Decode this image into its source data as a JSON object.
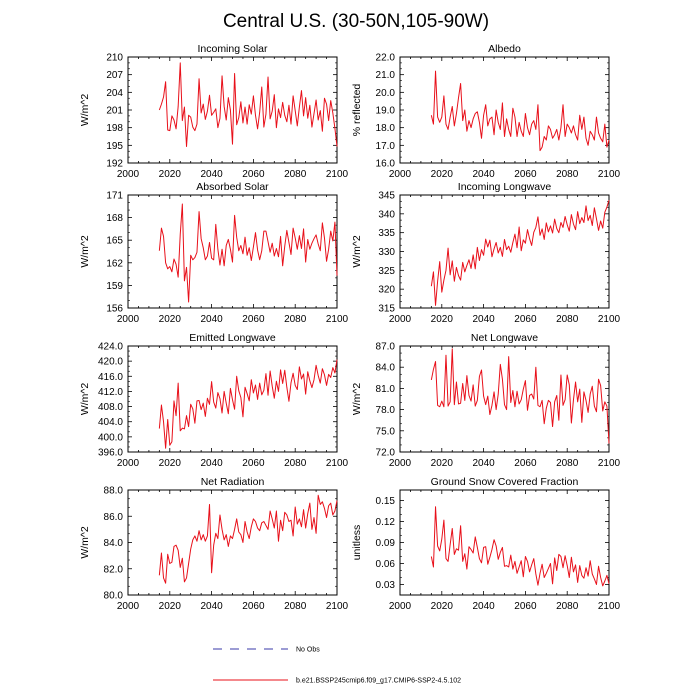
{
  "title": "Central U.S. (30-50N,105-90W)",
  "legend": {
    "obs_label": "No Obs",
    "obs_color": "#3a3aa8",
    "model_label": "b.e21.BSSP245cmip6.f09_g17.CMIP6-SSP2-4.5.102",
    "model_color": "#e8101a"
  },
  "chart_data": [
    {
      "type": "line",
      "title": "Incoming Solar",
      "ylabel": "W/m^2",
      "xlim": [
        2000,
        2100
      ],
      "xticks": [
        2000,
        2020,
        2040,
        2060,
        2080,
        2100
      ],
      "ylim": [
        192,
        210
      ],
      "yticks": [
        "192",
        "195",
        "198",
        "201",
        "204",
        "207",
        "210"
      ],
      "series": [
        {
          "name": "b.e21.BSSP245cmip6.f09_g17.CMIP6-SSP2-4.5.102",
          "x_start": 2015,
          "values": [
            201.0,
            202.0,
            203.2,
            205.8,
            197.6,
            197.5,
            200.0,
            199.3,
            197.8,
            201.6,
            209.0,
            199.2,
            201.5,
            194.8,
            200.1,
            199.8,
            198.1,
            197.5,
            198.6,
            206.3,
            200.5,
            202.0,
            199.4,
            200.8,
            203.5,
            200.1,
            200.6,
            201.2,
            198.0,
            199.6,
            206.8,
            201.6,
            199.3,
            203.1,
            201.0,
            195.2,
            207.2,
            198.5,
            199.7,
            202.4,
            198.8,
            201.5,
            198.6,
            201.9,
            200.3,
            203.4,
            200.1,
            197.8,
            200.6,
            204.9,
            198.1,
            200.3,
            206.6,
            199.5,
            200.8,
            203.6,
            198.0,
            201.2,
            199.7,
            202.3,
            200.1,
            199.0,
            201.8,
            198.6,
            203.4,
            200.9,
            198.3,
            201.5,
            204.3,
            200.0,
            203.1,
            199.6,
            201.8,
            198.1,
            200.4,
            202.7,
            199.3,
            200.9,
            197.4,
            203.0,
            202.0,
            199.2,
            202.6,
            200.5,
            197.9,
            194.8
          ]
        }
      ]
    },
    {
      "type": "line",
      "title": "Albedo",
      "ylabel": "% reflected",
      "xlim": [
        2000,
        2100
      ],
      "xticks": [
        2000,
        2020,
        2040,
        2060,
        2080,
        2100
      ],
      "ylim": [
        16.0,
        22.0
      ],
      "yticks": [
        "16.0",
        "17.0",
        "18.0",
        "19.0",
        "20.0",
        "21.0",
        "22.0"
      ],
      "series": [
        {
          "name": "b.e21.BSSP245cmip6.f09_g17.CMIP6-SSP2-4.5.102",
          "x_start": 2015,
          "values": [
            18.7,
            18.2,
            21.2,
            18.6,
            18.3,
            18.6,
            19.8,
            18.2,
            17.9,
            18.6,
            19.2,
            18.1,
            18.8,
            19.7,
            20.5,
            18.4,
            19.0,
            17.8,
            18.4,
            18.0,
            18.5,
            18.8,
            18.9,
            18.3,
            17.4,
            18.7,
            19.3,
            18.1,
            18.5,
            18.6,
            17.6,
            19.0,
            18.3,
            17.9,
            19.4,
            17.5,
            18.5,
            17.9,
            17.5,
            19.1,
            18.6,
            17.5,
            18.3,
            17.8,
            17.5,
            18.8,
            18.0,
            17.6,
            18.2,
            18.4,
            17.9,
            19.3,
            16.7,
            16.9,
            17.5,
            17.3,
            18.1,
            17.9,
            17.4,
            17.6,
            17.9,
            17.3,
            18.0,
            19.3,
            17.5,
            18.2,
            18.0,
            17.7,
            18.1,
            17.6,
            17.3,
            18.7,
            17.9,
            18.6,
            17.4,
            17.0,
            17.8,
            17.6,
            17.3,
            18.6,
            17.7,
            17.4,
            17.2,
            18.2,
            16.9,
            17.3
          ]
        }
      ]
    },
    {
      "type": "line",
      "title": "Absorbed Solar",
      "ylabel": "W/m^2",
      "xlim": [
        2000,
        2100
      ],
      "xticks": [
        2000,
        2020,
        2040,
        2060,
        2080,
        2100
      ],
      "ylim": [
        156,
        171
      ],
      "yticks": [
        "156",
        "159",
        "162",
        "165",
        "168",
        "171"
      ],
      "series": [
        {
          "name": "b.e21.BSSP245cmip6.f09_g17.CMIP6-SSP2-4.5.102",
          "x_start": 2015,
          "values": [
            163.6,
            166.6,
            165.5,
            162.0,
            161.2,
            161.5,
            160.8,
            162.5,
            161.8,
            160.1,
            165.8,
            169.8,
            159.6,
            161.4,
            156.8,
            163.0,
            162.4,
            162.7,
            163.4,
            168.8,
            165.2,
            164.0,
            162.4,
            162.9,
            164.7,
            162.6,
            162.4,
            167.1,
            163.8,
            161.7,
            163.8,
            161.6,
            164.3,
            165.1,
            163.8,
            162.1,
            168.3,
            165.4,
            163.6,
            164.3,
            163.2,
            165.4,
            163.0,
            164.0,
            162.3,
            164.1,
            166.0,
            163.7,
            162.4,
            163.6,
            166.2,
            166.2,
            164.8,
            163.4,
            164.6,
            162.9,
            163.9,
            162.8,
            165.5,
            161.6,
            164.2,
            166.3,
            164.7,
            163.1,
            166.6,
            165.3,
            163.8,
            165.6,
            163.9,
            166.5,
            162.1,
            165.1,
            163.8,
            164.6,
            165.2,
            165.7,
            164.5,
            163.6,
            167.3,
            165.3,
            162.2,
            163.8,
            166.2,
            164.9,
            167.4,
            160.3
          ]
        }
      ]
    },
    {
      "type": "line",
      "title": "Incoming Longwave",
      "ylabel": "W/m^2",
      "xlim": [
        2000,
        2100
      ],
      "xticks": [
        2000,
        2020,
        2040,
        2060,
        2080,
        2100
      ],
      "ylim": [
        315,
        345
      ],
      "yticks": [
        "315",
        "320",
        "325",
        "330",
        "335",
        "340",
        "345"
      ],
      "series": [
        {
          "name": "b.e21.BSSP245cmip6.f09_g17.CMIP6-SSP2-4.5.102",
          "x_start": 2015,
          "values": [
            320.8,
            324.6,
            315.7,
            322.1,
            327.3,
            319.2,
            322.4,
            325.0,
            330.9,
            323.8,
            327.5,
            322.1,
            325.8,
            323.6,
            322.4,
            327.1,
            324.6,
            326.3,
            327.8,
            325.5,
            329.1,
            325.4,
            331.1,
            327.6,
            330.5,
            329.0,
            333.3,
            331.2,
            333.0,
            328.6,
            330.7,
            332.4,
            329.6,
            331.1,
            328.7,
            333.2,
            330.5,
            331.4,
            329.8,
            332.4,
            334.6,
            331.0,
            336.5,
            330.2,
            333.1,
            332.2,
            335.8,
            333.4,
            331.6,
            335.1,
            336.4,
            339.2,
            334.3,
            336.0,
            333.2,
            337.6,
            335.2,
            336.8,
            334.9,
            338.6,
            336.1,
            335.0,
            337.7,
            336.4,
            339.3,
            337.1,
            335.4,
            339.8,
            337.3,
            335.8,
            340.6,
            337.4,
            339.0,
            337.7,
            342.1,
            338.2,
            339.6,
            336.9,
            341.6,
            338.7,
            335.6,
            338.1,
            336.2,
            340.4,
            341.8,
            343.6
          ]
        }
      ]
    },
    {
      "type": "line",
      "title": "Emitted Longwave",
      "ylabel": "W/m^2",
      "xlim": [
        2000,
        2100
      ],
      "xticks": [
        2000,
        2020,
        2040,
        2060,
        2080,
        2100
      ],
      "ylim": [
        396.0,
        424.0
      ],
      "yticks": [
        "396.0",
        "400.0",
        "404.0",
        "408.0",
        "412.0",
        "416.0",
        "420.0",
        "424.0"
      ],
      "series": [
        {
          "name": "b.e21.BSSP245cmip6.f09_g17.CMIP6-SSP2-4.5.102",
          "x_start": 2015,
          "values": [
            402.2,
            408.4,
            404.0,
            397.0,
            404.6,
            397.8,
            398.7,
            409.5,
            405.6,
            414.2,
            401.6,
            402.3,
            402.1,
            405.6,
            402.7,
            408.6,
            407.4,
            403.6,
            409.5,
            409.6,
            407.2,
            408.9,
            405.4,
            410.2,
            408.6,
            414.6,
            409.2,
            407.6,
            411.7,
            410.1,
            406.3,
            412.0,
            408.9,
            406.1,
            412.8,
            409.8,
            407.3,
            416.0,
            412.2,
            410.4,
            405.3,
            413.1,
            411.4,
            409.5,
            415.1,
            411.6,
            413.7,
            409.9,
            414.2,
            411.1,
            412.3,
            416.7,
            411.0,
            417.4,
            413.4,
            410.2,
            414.7,
            412.0,
            417.7,
            414.1,
            417.6,
            413.1,
            409.4,
            414.3,
            416.8,
            413.6,
            412.5,
            418.5,
            415.3,
            416.6,
            411.3,
            417.2,
            414.8,
            413.0,
            415.1,
            418.9,
            416.2,
            414.2,
            418.0,
            416.4,
            413.6,
            416.5,
            415.7,
            418.3,
            416.9,
            420.4
          ]
        }
      ]
    },
    {
      "type": "line",
      "title": "Net Longwave",
      "ylabel": "W/m^2",
      "xlim": [
        2000,
        2100
      ],
      "xticks": [
        2000,
        2020,
        2040,
        2060,
        2080,
        2100
      ],
      "ylim": [
        72.0,
        87.0
      ],
      "yticks": [
        "72.0",
        "75.0",
        "78.0",
        "81.0",
        "84.0",
        "87.0"
      ],
      "series": [
        {
          "name": "b.e21.BSSP245cmip6.f09_g17.CMIP6-SSP2-4.5.102",
          "x_start": 2015,
          "values": [
            82.2,
            83.7,
            84.8,
            78.6,
            78.4,
            79.2,
            78.4,
            85.7,
            78.5,
            79.1,
            86.6,
            78.7,
            81.9,
            78.8,
            78.9,
            81.7,
            79.3,
            82.8,
            80.0,
            79.2,
            81.5,
            78.5,
            79.3,
            82.7,
            83.6,
            79.9,
            78.7,
            79.9,
            77.3,
            78.6,
            80.5,
            78.0,
            80.2,
            84.4,
            82.3,
            78.7,
            78.0,
            85.5,
            79.0,
            80.7,
            78.4,
            80.6,
            78.8,
            79.4,
            80.9,
            82.1,
            77.9,
            80.0,
            80.2,
            79.5,
            84.0,
            78.6,
            78.4,
            79.3,
            76.0,
            78.2,
            79.3,
            79.0,
            75.6,
            79.1,
            80.0,
            76.5,
            82.9,
            78.6,
            79.4,
            82.9,
            81.5,
            76.1,
            79.4,
            81.9,
            79.1,
            80.9,
            76.2,
            80.5,
            79.3,
            77.6,
            80.2,
            81.3,
            78.5,
            77.7,
            82.3,
            81.4,
            77.8,
            79.1,
            78.5,
            73.2
          ]
        }
      ]
    },
    {
      "type": "line",
      "title": "Net Radiation",
      "ylabel": "W/m^2",
      "xlim": [
        2000,
        2100
      ],
      "xticks": [
        2000,
        2020,
        2040,
        2060,
        2080,
        2100
      ],
      "ylim": [
        80.0,
        88.0
      ],
      "yticks": [
        "80.0",
        "82.0",
        "84.0",
        "86.0",
        "88.0"
      ],
      "series": [
        {
          "name": "b.e21.BSSP245cmip6.f09_g17.CMIP6-SSP2-4.5.102",
          "x_start": 2015,
          "values": [
            81.5,
            83.2,
            81.3,
            80.9,
            83.1,
            82.4,
            82.5,
            83.7,
            83.8,
            83.4,
            82.1,
            82.8,
            81.0,
            81.3,
            82.4,
            83.5,
            84.2,
            84.5,
            84.1,
            84.9,
            84.2,
            84.6,
            84.1,
            84.5,
            86.9,
            81.7,
            83.8,
            84.7,
            84.3,
            86.1,
            85.0,
            84.2,
            84.6,
            83.7,
            84.5,
            84.3,
            85.0,
            85.8,
            84.8,
            84.6,
            84.0,
            85.6,
            84.8,
            84.3,
            85.2,
            85.8,
            85.6,
            85.1,
            84.9,
            85.5,
            85.6,
            85.3,
            85.0,
            86.4,
            85.8,
            85.1,
            86.4,
            84.1,
            85.7,
            84.9,
            86.3,
            86.1,
            85.6,
            85.7,
            84.5,
            86.7,
            85.4,
            85.8,
            85.2,
            86.5,
            85.1,
            86.2,
            87.0,
            85.0,
            85.9,
            84.7,
            87.6,
            86.9,
            87.1,
            86.6,
            85.9,
            86.8,
            87.0,
            86.1,
            86.4,
            87.2
          ]
        }
      ]
    },
    {
      "type": "line",
      "title": "Ground Snow Covered Fraction",
      "ylabel": "unitless",
      "xlim": [
        2000,
        2100
      ],
      "xticks": [
        2000,
        2020,
        2040,
        2060,
        2080,
        2100
      ],
      "ylim": [
        0.015,
        0.165
      ],
      "yticks": [
        "0.03",
        "0.06",
        "0.09",
        "0.12",
        "0.15"
      ],
      "series": [
        {
          "name": "b.e21.BSSP245cmip6.f09_g17.CMIP6-SSP2-4.5.102",
          "x_start": 2015,
          "values": [
            0.07,
            0.055,
            0.141,
            0.085,
            0.078,
            0.095,
            0.122,
            0.067,
            0.063,
            0.087,
            0.11,
            0.073,
            0.081,
            0.079,
            0.114,
            0.063,
            0.074,
            0.052,
            0.084,
            0.08,
            0.075,
            0.098,
            0.083,
            0.067,
            0.061,
            0.083,
            0.084,
            0.059,
            0.069,
            0.08,
            0.094,
            0.085,
            0.066,
            0.076,
            0.083,
            0.056,
            0.057,
            0.055,
            0.072,
            0.052,
            0.063,
            0.046,
            0.055,
            0.064,
            0.041,
            0.07,
            0.063,
            0.048,
            0.058,
            0.067,
            0.045,
            0.029,
            0.046,
            0.059,
            0.04,
            0.046,
            0.053,
            0.06,
            0.031,
            0.068,
            0.05,
            0.073,
            0.07,
            0.054,
            0.071,
            0.057,
            0.04,
            0.069,
            0.048,
            0.058,
            0.033,
            0.057,
            0.043,
            0.039,
            0.054,
            0.042,
            0.064,
            0.045,
            0.038,
            0.03,
            0.056,
            0.04,
            0.028,
            0.035,
            0.043,
            0.031
          ]
        }
      ]
    }
  ]
}
